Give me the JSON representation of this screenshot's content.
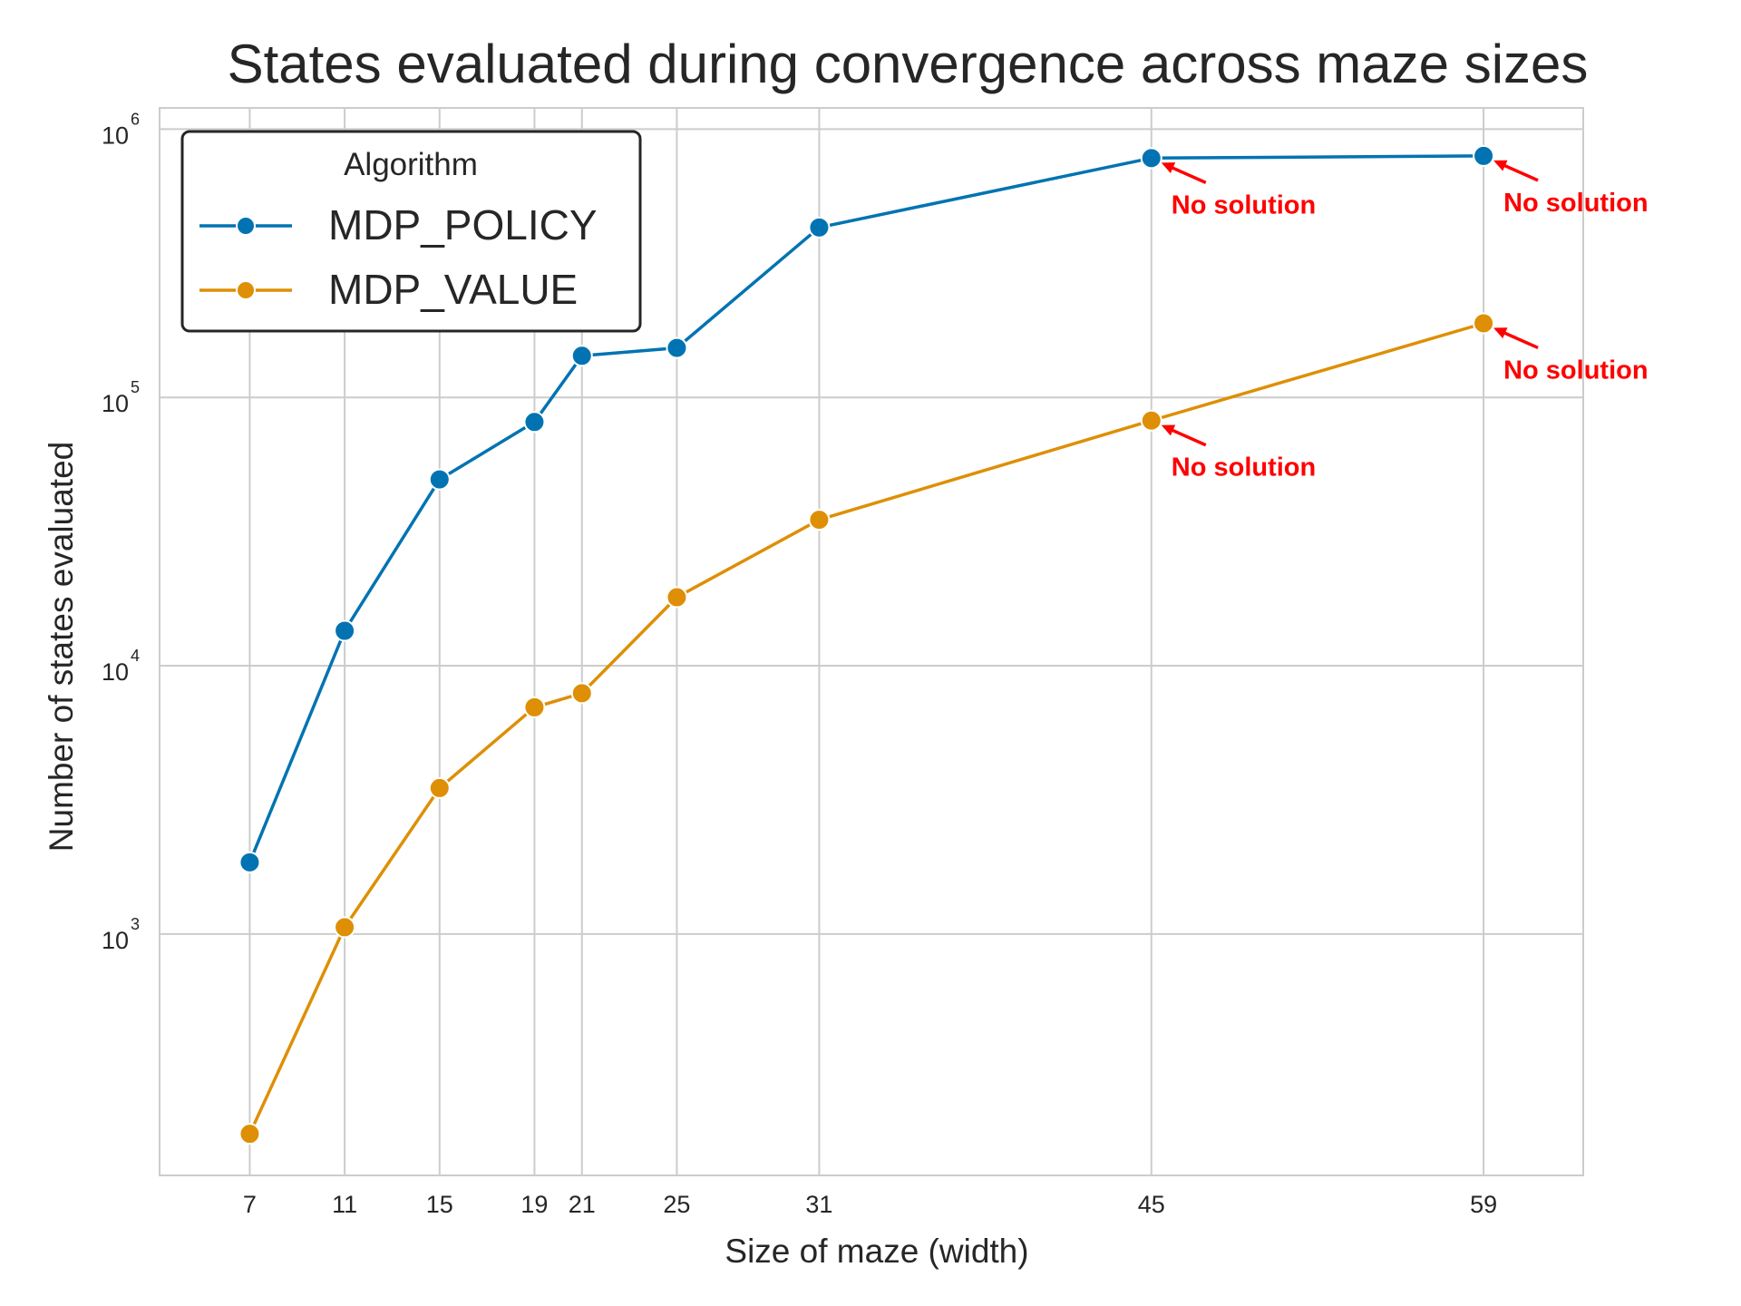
{
  "colors": {
    "policy": "#0173b2",
    "value": "#de8f05",
    "annotation": "#ff0000",
    "grid": "#cccccc",
    "frame": "#cccccc"
  },
  "chart_data": {
    "type": "line",
    "title": "States evaluated during convergence across maze sizes",
    "xlabel": "Size of maze (width)",
    "ylabel": "Number of states evaluated",
    "yscale": "log",
    "xlim": [
      3.2,
      63.2
    ],
    "ylim": [
      126,
      1200000
    ],
    "x": [
      7,
      11,
      15,
      19,
      21,
      25,
      31,
      45,
      59
    ],
    "xticks": [
      7,
      11,
      15,
      19,
      21,
      25,
      31,
      45,
      59
    ],
    "yticks": [
      {
        "value": 1000,
        "base": "10",
        "exp": "3"
      },
      {
        "value": 10000,
        "base": "10",
        "exp": "4"
      },
      {
        "value": 100000,
        "base": "10",
        "exp": "5"
      },
      {
        "value": 1000000,
        "base": "10",
        "exp": "6"
      }
    ],
    "grid": true,
    "legend": {
      "title": "Algorithm",
      "position": "top-left"
    },
    "series": [
      {
        "name": "MDP_POLICY",
        "color": "#0173b2",
        "values": [
          1850,
          13500,
          49500,
          81000,
          143000,
          153000,
          430000,
          780000,
          795000
        ]
      },
      {
        "name": "MDP_VALUE",
        "color": "#de8f05",
        "values": [
          180,
          1060,
          3500,
          7000,
          7900,
          18000,
          35000,
          82000,
          189000
        ]
      }
    ],
    "annotations": [
      {
        "text": "No solution",
        "x": 45,
        "y": 780000
      },
      {
        "text": "No solution",
        "x": 59,
        "y": 795000
      },
      {
        "text": "No solution",
        "x": 45,
        "y": 82000
      },
      {
        "text": "No solution",
        "x": 59,
        "y": 189000
      }
    ]
  }
}
